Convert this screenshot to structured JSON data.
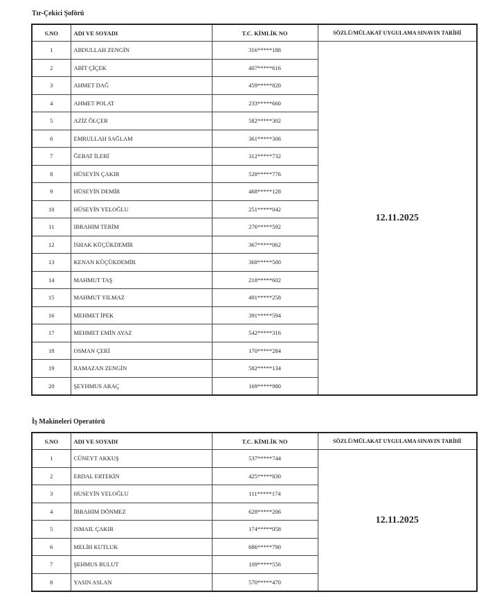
{
  "headers": {
    "sno": "S.NO",
    "name": "ADI VE SOYADI",
    "tc": "T.C. KİMLİK NO",
    "date": "SÖZLÜ/MÜLAKAT UYGULAMA SINAVIN TARİHİ"
  },
  "sections": [
    {
      "title": "Tır-Çekici Şoförü",
      "date": "12.11.2025",
      "rows": [
        [
          "1",
          "ABDULLAH ZENGİN",
          "316*****188"
        ],
        [
          "2",
          "ABİT ÇİÇEK",
          "407*****616"
        ],
        [
          "3",
          "AHMET DAĞ",
          "459*****820"
        ],
        [
          "4",
          "AHMET POLAT",
          "233*****660"
        ],
        [
          "5",
          "AZİZ ÖLÇER",
          "582*****302"
        ],
        [
          "6",
          "EMRULLAH SAĞLAM",
          "361*****306"
        ],
        [
          "7",
          "ĞEBAT İLERİ",
          "312*****732"
        ],
        [
          "8",
          "HÜSEYİN ÇAKIR",
          "528*****776"
        ],
        [
          "9",
          "HÜSEYİN DEMİR",
          "468*****128"
        ],
        [
          "10",
          "HÜSEYİN YELOĞLU",
          "251*****042"
        ],
        [
          "11",
          "IBRAHIM TERİM",
          "276*****592"
        ],
        [
          "12",
          "İSHAK KÜÇÜKDEMİR",
          "367*****062"
        ],
        [
          "13",
          "KENAN KÜÇÜKDEMİR",
          "368*****500"
        ],
        [
          "14",
          "MAHMUT TAŞ",
          "218*****602"
        ],
        [
          "15",
          "MAHMUT YILMAZ",
          "491*****258"
        ],
        [
          "16",
          "MEHMET İPEK",
          "391*****594"
        ],
        [
          "17",
          "MEHMET EMİN AYAZ",
          "542*****316"
        ],
        [
          "18",
          "OSMAN ÇERİ",
          "170*****284"
        ],
        [
          "19",
          "RAMAZAN ZENGİN",
          "582*****134"
        ],
        [
          "20",
          "ŞEYHMUS ARAÇ",
          "169*****980"
        ]
      ]
    },
    {
      "title": "İş Makineleri Operatörü",
      "date": "12.11.2025",
      "rows": [
        [
          "1",
          "CÜNEYT AKKUŞ",
          "537*****744"
        ],
        [
          "2",
          "ERDAL ERTEKİN",
          "425*****830"
        ],
        [
          "3",
          "HUSEYİN YELOĞLU",
          "111*****174"
        ],
        [
          "4",
          "İBRAHIM DÖNMEZ",
          "628*****206"
        ],
        [
          "5",
          "ISMAIL ÇAKIR",
          "174*****058"
        ],
        [
          "6",
          "MELİH KUTLUK",
          "686*****790"
        ],
        [
          "7",
          "ŞEHMUS BULUT",
          "109*****556"
        ],
        [
          "8",
          "YASIN ASLAN",
          "570*****470"
        ]
      ]
    }
  ]
}
